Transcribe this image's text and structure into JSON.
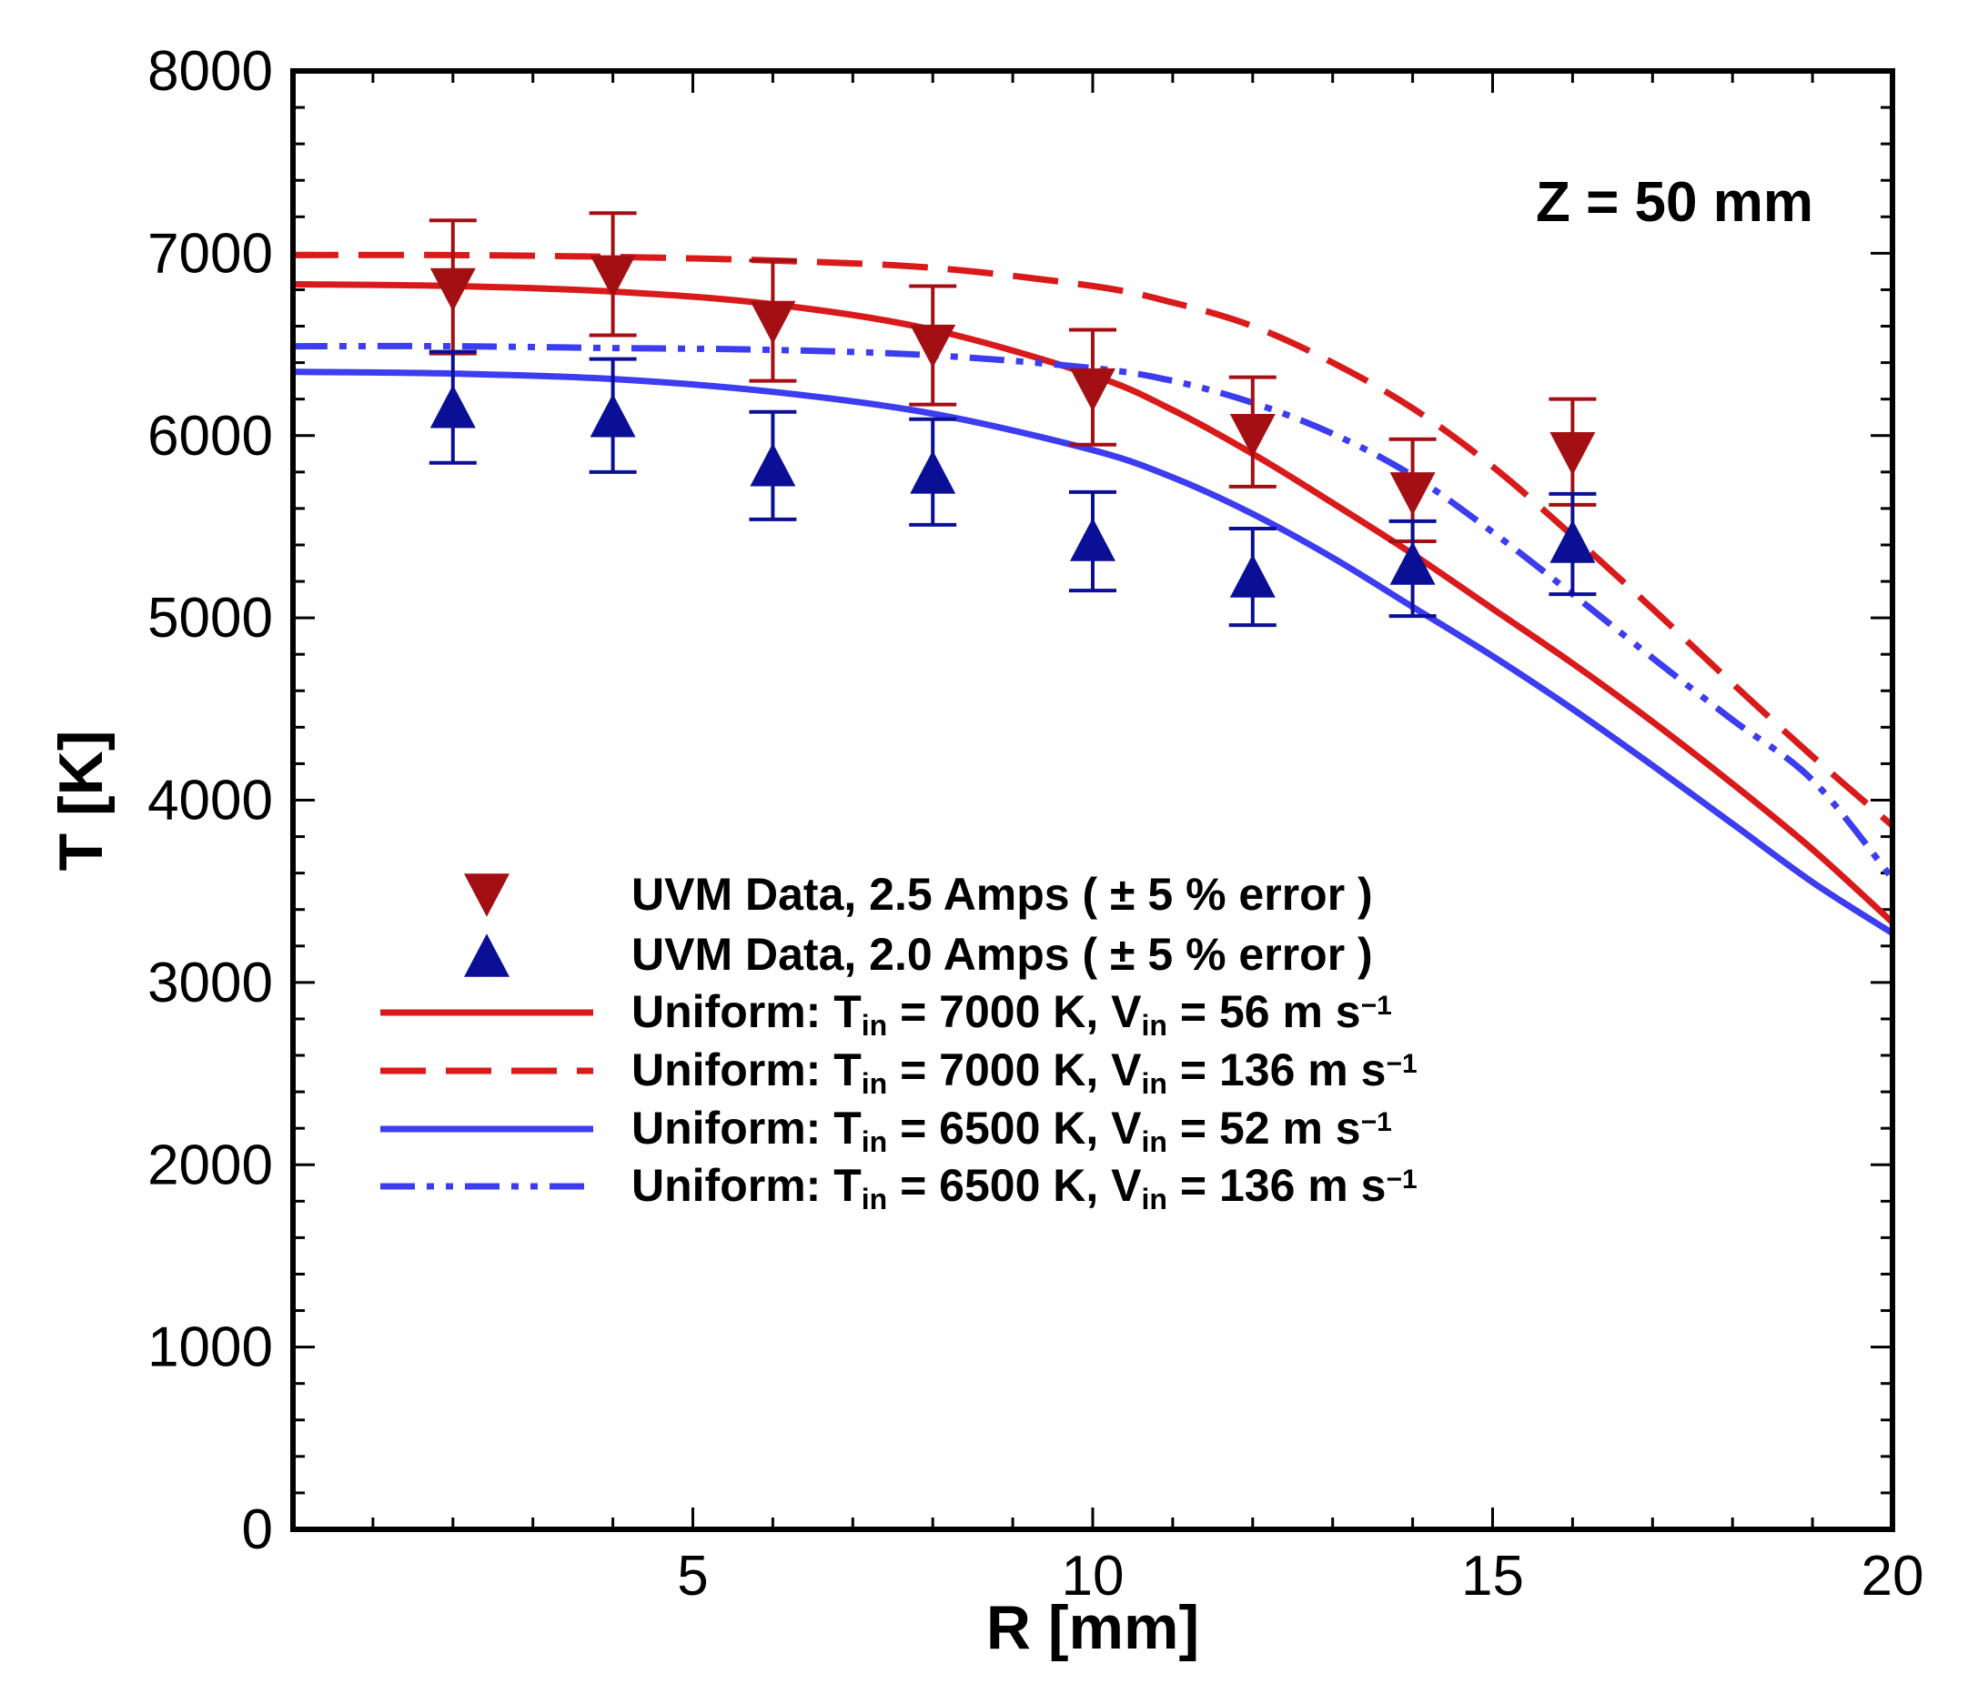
{
  "chart_data": {
    "type": "line",
    "xlabel": "R [mm]",
    "ylabel": "T [K]",
    "xlim": [
      0,
      20
    ],
    "ylim": [
      0,
      8000
    ],
    "x_major_ticks": [
      5,
      10,
      15,
      20
    ],
    "x_tick_labels": [
      "5",
      "10",
      "15",
      "20"
    ],
    "y_major_ticks": [
      0,
      1000,
      2000,
      3000,
      4000,
      5000,
      6000,
      7000,
      8000
    ],
    "y_tick_labels": [
      "0",
      "1000",
      "2000",
      "3000",
      "4000",
      "5000",
      "6000",
      "7000",
      "8000"
    ],
    "grid": false,
    "annotation": "Z = 50 mm",
    "legend_position": "center-left",
    "colors": {
      "red_data": "#a30f12",
      "blue_data": "#0a0f96",
      "red_line": "#d91a1a",
      "blue_line": "#3c3cf0"
    },
    "scatter_series": [
      {
        "name": "UVM Data, 2.5 Amps ( ± 5 % error )",
        "marker": "triangle-down",
        "color": "#a30f12",
        "x": [
          2,
          4,
          6,
          8,
          10,
          12,
          14,
          16
        ],
        "y": [
          6800,
          6870,
          6620,
          6490,
          6250,
          6000,
          5680,
          5900
        ],
        "err_low": [
          6450,
          6550,
          6300,
          6170,
          5950,
          5720,
          5420,
          5620
        ],
        "err_high": [
          7180,
          7220,
          6960,
          6820,
          6580,
          6320,
          5980,
          6200
        ]
      },
      {
        "name": "UVM Data, 2.0 Amps ( ± 5 % error )",
        "marker": "triangle-up",
        "color": "#0a0f96",
        "x": [
          2,
          4,
          6,
          8,
          10,
          12,
          14,
          16
        ],
        "y": [
          6160,
          6110,
          5840,
          5800,
          5430,
          5230,
          5300,
          5420
        ],
        "err_low": [
          5850,
          5800,
          5540,
          5510,
          5150,
          4960,
          5010,
          5130
        ],
        "err_high": [
          6460,
          6420,
          6130,
          6090,
          5690,
          5490,
          5530,
          5680
        ]
      }
    ],
    "line_series": [
      {
        "legend_prefix": "Uniform: T",
        "legend_mid1": " = 7000 K, V",
        "legend_mid2": " = 56 m s",
        "sub": "in",
        "sup": "−1",
        "color": "#d91a1a",
        "dash": "solid",
        "x": [
          0,
          2,
          4,
          6,
          8,
          10,
          11,
          12,
          13,
          14,
          15,
          16,
          17,
          18,
          19,
          20
        ],
        "y": [
          6830,
          6820,
          6790,
          6720,
          6580,
          6330,
          6140,
          5900,
          5630,
          5350,
          5050,
          4750,
          4430,
          4090,
          3730,
          3330
        ]
      },
      {
        "legend_prefix": "Uniform: T",
        "legend_mid1": " = 7000 K, V",
        "legend_mid2": " = 136 m s",
        "sub": "in",
        "sup": "−1",
        "color": "#d91a1a",
        "dash": "dashed",
        "x": [
          0,
          2,
          4,
          6,
          8,
          10,
          11,
          12,
          13,
          14,
          15,
          16,
          17,
          18,
          19,
          20
        ],
        "y": [
          6990,
          6990,
          6980,
          6960,
          6920,
          6820,
          6730,
          6600,
          6400,
          6150,
          5830,
          5450,
          5050,
          4640,
          4240,
          3860
        ]
      },
      {
        "legend_prefix": "Uniform: T",
        "legend_mid1": " = 6500 K, V",
        "legend_mid2": " = 52 m s",
        "sub": "in",
        "sup": "−1",
        "color": "#3c3cf0",
        "dash": "solid",
        "x": [
          0,
          2,
          4,
          6,
          8,
          10,
          11,
          12,
          13,
          14,
          15,
          16,
          17,
          18,
          19,
          20
        ],
        "y": [
          6350,
          6340,
          6310,
          6240,
          6120,
          5920,
          5770,
          5570,
          5330,
          5060,
          4790,
          4500,
          4190,
          3870,
          3550,
          3270
        ]
      },
      {
        "legend_prefix": "Uniform: T",
        "legend_mid1": " = 6500 K, V",
        "legend_mid2": " = 136 m s",
        "sub": "in",
        "sup": "−1",
        "color": "#3c3cf0",
        "dash": "dash-dot-dot",
        "x": [
          0,
          2,
          4,
          6,
          8,
          10,
          11,
          12,
          13,
          14,
          15,
          16,
          17,
          18,
          19,
          20
        ],
        "y": [
          6490,
          6490,
          6480,
          6470,
          6440,
          6370,
          6300,
          6180,
          6010,
          5780,
          5470,
          5130,
          4780,
          4440,
          4110,
          3570
        ]
      }
    ]
  }
}
